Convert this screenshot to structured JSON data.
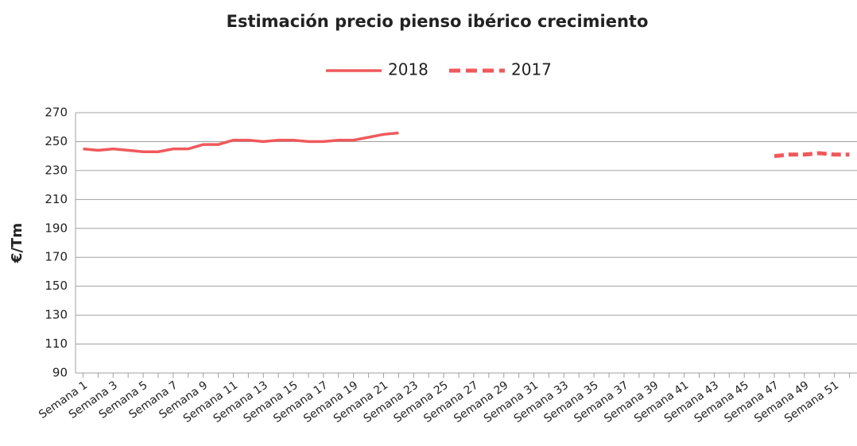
{
  "chart_data": {
    "type": "line",
    "title": "Estimación precio pienso ibérico crecimiento",
    "ylabel": "€/Tm",
    "categories": [
      "Semana 1",
      null,
      "Semana 3",
      null,
      "Semana 5",
      null,
      "Semana 7",
      null,
      "Semana 9",
      null,
      "Semana 11",
      null,
      "Semana 13",
      null,
      "Semana 15",
      null,
      "Semana 17",
      null,
      "Semana 19",
      null,
      "Semana 21",
      null,
      "Semana 23",
      null,
      "Semana 25",
      null,
      "Semana 27",
      null,
      "Semana 29",
      null,
      "Semana 31",
      null,
      "Semana 33",
      null,
      "Semana 35",
      null,
      "Semana 37",
      null,
      "Semana 39",
      null,
      "Semana 41",
      null,
      "Semana 43",
      null,
      "Semana 45",
      null,
      "Semana 47",
      null,
      "Semana 49",
      null,
      "Semana 51",
      null
    ],
    "series": [
      {
        "name": "2018",
        "color": "#f0595c",
        "line_style": "solid",
        "values": [
          245,
          244,
          245,
          244,
          243,
          243,
          245,
          245,
          248,
          248,
          251,
          251,
          250,
          251,
          251,
          250,
          250,
          251,
          251,
          253,
          255,
          256,
          null,
          null,
          null,
          null,
          null,
          null,
          null,
          null,
          null,
          null,
          null,
          null,
          null,
          null,
          null,
          null,
          null,
          null,
          null,
          null,
          null,
          null,
          null,
          null,
          null,
          null,
          null,
          null,
          null,
          null
        ]
      },
      {
        "name": "2017",
        "color": "#f0595c",
        "line_style": "dashed",
        "values": [
          null,
          null,
          null,
          null,
          null,
          null,
          null,
          null,
          null,
          null,
          null,
          null,
          null,
          null,
          null,
          null,
          null,
          null,
          null,
          null,
          null,
          null,
          null,
          null,
          null,
          null,
          null,
          null,
          null,
          null,
          null,
          null,
          null,
          null,
          null,
          null,
          null,
          null,
          null,
          null,
          null,
          null,
          null,
          null,
          null,
          null,
          240,
          241,
          241,
          242,
          241,
          241
        ]
      }
    ],
    "ylim": [
      90,
      270
    ],
    "yticks": [
      90,
      110,
      130,
      150,
      170,
      190,
      210,
      230,
      250,
      270
    ],
    "grid": true,
    "legend": "top"
  }
}
